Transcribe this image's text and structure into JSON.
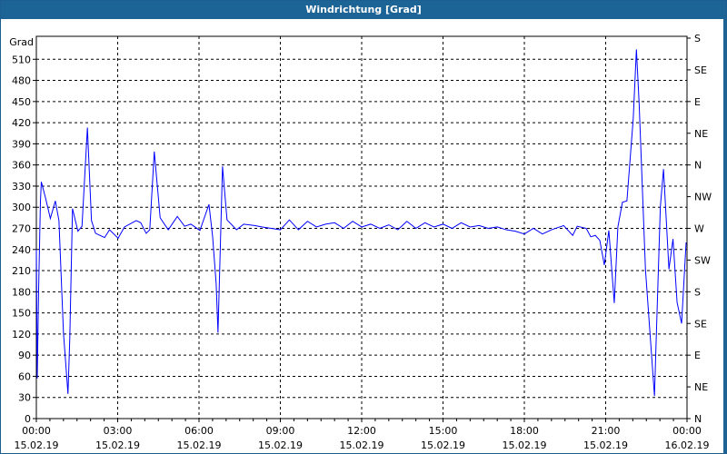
{
  "window": {
    "title": "Windrichtung [Grad]"
  },
  "chart_data": {
    "type": "line",
    "title": "Windrichtung [Grad]",
    "ylabel": "Grad",
    "ylim": [
      0,
      540
    ],
    "yticks": [
      0,
      30,
      60,
      90,
      120,
      150,
      180,
      210,
      240,
      270,
      300,
      330,
      360,
      390,
      420,
      450,
      480,
      510
    ],
    "y2ticks": [
      {
        "value": 0,
        "label": "N"
      },
      {
        "value": 45,
        "label": "NE"
      },
      {
        "value": 90,
        "label": "E"
      },
      {
        "value": 135,
        "label": "SE"
      },
      {
        "value": 180,
        "label": "S"
      },
      {
        "value": 225,
        "label": "SW"
      },
      {
        "value": 270,
        "label": "W"
      },
      {
        "value": 315,
        "label": "NW"
      },
      {
        "value": 360,
        "label": "N"
      },
      {
        "value": 405,
        "label": "NE"
      },
      {
        "value": 450,
        "label": "E"
      },
      {
        "value": 495,
        "label": "SE"
      },
      {
        "value": 540,
        "label": "S"
      }
    ],
    "xlim": [
      "15.02.19 00:00",
      "16.02.19 00:00"
    ],
    "xticks": [
      {
        "time": "00:00",
        "date": "15.02.19"
      },
      {
        "time": "03:00",
        "date": "15.02.19"
      },
      {
        "time": "06:00",
        "date": "15.02.19"
      },
      {
        "time": "09:00",
        "date": "15.02.19"
      },
      {
        "time": "12:00",
        "date": "15.02.19"
      },
      {
        "time": "15:00",
        "date": "15.02.19"
      },
      {
        "time": "18:00",
        "date": "15.02.19"
      },
      {
        "time": "21:00",
        "date": "15.02.19"
      },
      {
        "time": "00:00",
        "date": "16.02.19"
      }
    ],
    "grid": true,
    "line_color": "#0000ff",
    "series": [
      {
        "points": [
          [
            "00:00",
            240
          ],
          [
            "00:02",
            57
          ],
          [
            "00:05",
            182
          ],
          [
            "00:09",
            307
          ],
          [
            "00:11",
            336
          ],
          [
            "00:20",
            314
          ],
          [
            "00:31",
            284
          ],
          [
            "00:42",
            309
          ],
          [
            "00:50",
            281
          ],
          [
            "01:00",
            122
          ],
          [
            "01:10",
            35
          ],
          [
            "01:14",
            114
          ],
          [
            "01:20",
            298
          ],
          [
            "01:32",
            266
          ],
          [
            "01:41",
            273
          ],
          [
            "01:53",
            413
          ],
          [
            "02:02",
            281
          ],
          [
            "02:11",
            263
          ],
          [
            "02:31",
            257
          ],
          [
            "02:42",
            268
          ],
          [
            "03:01",
            256
          ],
          [
            "03:15",
            272
          ],
          [
            "03:41",
            281
          ],
          [
            "03:51",
            278
          ],
          [
            "04:03",
            263
          ],
          [
            "04:11",
            268
          ],
          [
            "04:21",
            379
          ],
          [
            "04:34",
            285
          ],
          [
            "04:52",
            268
          ],
          [
            "05:12",
            287
          ],
          [
            "05:28",
            273
          ],
          [
            "05:42",
            276
          ],
          [
            "06:02",
            267
          ],
          [
            "06:22",
            304
          ],
          [
            "06:30",
            259
          ],
          [
            "06:38",
            191
          ],
          [
            "06:42",
            122
          ],
          [
            "06:52",
            358
          ],
          [
            "07:02",
            282
          ],
          [
            "07:23",
            268
          ],
          [
            "07:39",
            276
          ],
          [
            "08:03",
            274
          ],
          [
            "08:20",
            272
          ],
          [
            "08:40",
            270
          ],
          [
            "09:00",
            268
          ],
          [
            "09:20",
            282
          ],
          [
            "09:40",
            268
          ],
          [
            "10:00",
            280
          ],
          [
            "10:20",
            272
          ],
          [
            "10:40",
            276
          ],
          [
            "11:00",
            278
          ],
          [
            "11:20",
            270
          ],
          [
            "11:40",
            280
          ],
          [
            "12:00",
            272
          ],
          [
            "12:20",
            276
          ],
          [
            "12:40",
            270
          ],
          [
            "13:00",
            275
          ],
          [
            "13:20",
            268
          ],
          [
            "13:40",
            280
          ],
          [
            "14:00",
            270
          ],
          [
            "14:20",
            278
          ],
          [
            "14:40",
            272
          ],
          [
            "15:00",
            276
          ],
          [
            "15:20",
            270
          ],
          [
            "15:40",
            278
          ],
          [
            "16:00",
            272
          ],
          [
            "16:20",
            274
          ],
          [
            "16:40",
            270
          ],
          [
            "17:00",
            272
          ],
          [
            "17:20",
            268
          ],
          [
            "17:40",
            266
          ],
          [
            "18:00",
            262
          ],
          [
            "18:20",
            270
          ],
          [
            "18:40",
            262
          ],
          [
            "19:00",
            268
          ],
          [
            "19:27",
            274
          ],
          [
            "19:47",
            260
          ],
          [
            "19:57",
            273
          ],
          [
            "20:17",
            270
          ],
          [
            "20:27",
            258
          ],
          [
            "20:37",
            260
          ],
          [
            "20:47",
            253
          ],
          [
            "20:57",
            218
          ],
          [
            "21:07",
            267
          ],
          [
            "21:19",
            164
          ],
          [
            "21:27",
            272
          ],
          [
            "21:37",
            307
          ],
          [
            "21:47",
            309
          ],
          [
            "22:01",
            426
          ],
          [
            "22:08",
            524
          ],
          [
            "22:14",
            448
          ],
          [
            "22:28",
            212
          ],
          [
            "22:38",
            122
          ],
          [
            "22:48",
            32
          ],
          [
            "22:51",
            96
          ],
          [
            "23:01",
            301
          ],
          [
            "23:08",
            354
          ],
          [
            "23:20",
            212
          ],
          [
            "23:29",
            255
          ],
          [
            "23:38",
            165
          ],
          [
            "23:48",
            135
          ],
          [
            "23:58",
            250
          ]
        ]
      }
    ]
  }
}
